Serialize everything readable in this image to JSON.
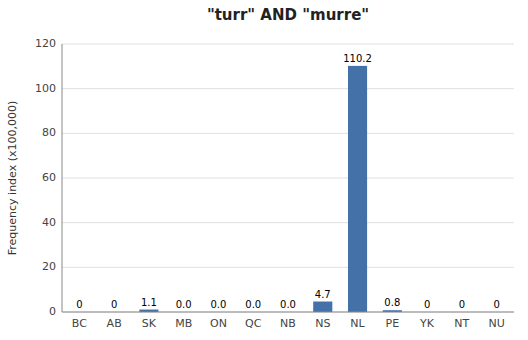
{
  "chart_data": {
    "type": "bar",
    "title": "\"turr\" AND \"murre\"",
    "ylabel": "Frequency index (x100,000)",
    "categories": [
      "BC",
      "AB",
      "SK",
      "MB",
      "ON",
      "QC",
      "NB",
      "NS",
      "NL",
      "PE",
      "YK",
      "NT",
      "NU"
    ],
    "values": [
      0,
      0,
      1.1,
      0.0,
      0.0,
      0.0,
      0.0,
      4.7,
      110.2,
      0.8,
      0,
      0,
      0
    ],
    "value_labels": [
      "0",
      "0",
      "1.1",
      "0.0",
      "0.0",
      "0.0",
      "0.0",
      "4.7",
      "110.2",
      "0.8",
      "0",
      "0",
      "0"
    ],
    "data_labels": true,
    "color": "#4472a8",
    "ylim": [
      0,
      120
    ],
    "yticks": [
      0,
      20,
      40,
      60,
      80,
      100,
      120
    ],
    "grid": true
  }
}
